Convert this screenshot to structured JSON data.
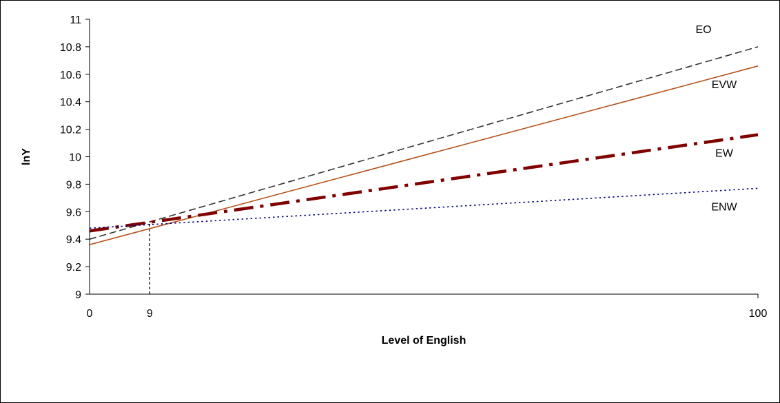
{
  "chart_data": {
    "type": "line",
    "title": "",
    "xlabel": "Level of English",
    "ylabel": "lnY",
    "xlim": [
      0,
      100
    ],
    "ylim": [
      9,
      11
    ],
    "x_ticks": [
      "0",
      "9",
      "100"
    ],
    "y_ticks": [
      "9",
      "9.2",
      "9.4",
      "9.6",
      "9.8",
      "10",
      "10.2",
      "10.4",
      "10.6",
      "10.8",
      "11"
    ],
    "grid": false,
    "legend": "none",
    "reference_line": {
      "x": 9,
      "y_from": 9,
      "y_to": 9.52,
      "style": "dashed",
      "color": "#000000"
    },
    "series": [
      {
        "name": "EO",
        "x": [
          0,
          100
        ],
        "y": [
          9.4,
          10.8
        ],
        "color": "#333333",
        "style": "dashed"
      },
      {
        "name": "EVW",
        "x": [
          0,
          100
        ],
        "y": [
          9.36,
          10.66
        ],
        "color": "#b5531e",
        "style": "solid"
      },
      {
        "name": "EW",
        "x": [
          0,
          100
        ],
        "y": [
          9.46,
          10.16
        ],
        "color": "#800000",
        "style": "dash-dot-thick"
      },
      {
        "name": "ENW",
        "x": [
          0,
          100
        ],
        "y": [
          9.48,
          9.77
        ],
        "color": "#000080",
        "style": "dotted"
      }
    ]
  }
}
